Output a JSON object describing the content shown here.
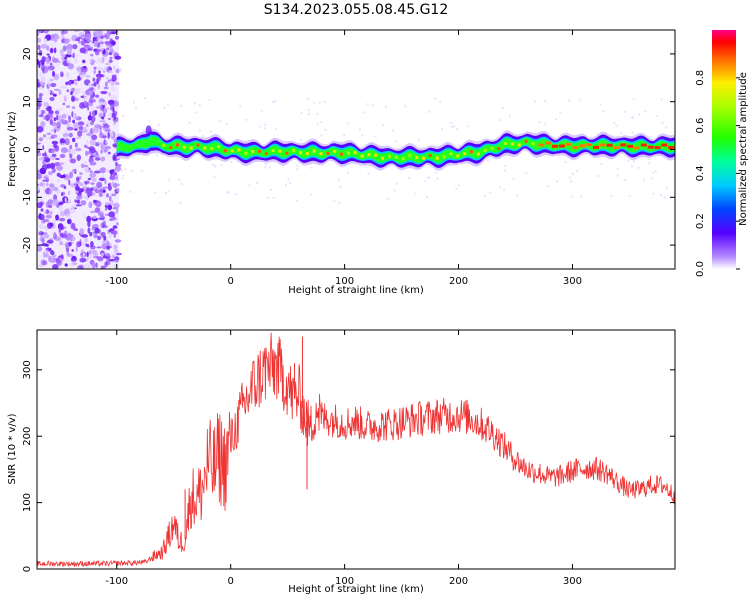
{
  "title": "S134.2023.055.08.45.G12",
  "chart_data": [
    {
      "type": "heatmap",
      "xlabel": "Height of straight line (km)",
      "ylabel": "Frequency (Hz)",
      "xlim": [
        -170,
        390
      ],
      "ylim": [
        -25,
        25
      ],
      "xticks": [
        -100,
        0,
        100,
        200,
        300
      ],
      "yticks": [
        -20,
        -10,
        0,
        10,
        20
      ],
      "grid": false,
      "colorbar": {
        "label": "Normalized spectral amplitude",
        "range": [
          0.0,
          1.0
        ],
        "ticks": [
          0.0,
          0.2,
          0.4,
          0.6,
          0.8
        ]
      },
      "noise_region_x": [
        -170,
        -98
      ],
      "ridge": {
        "x": [
          -100,
          -90,
          -80,
          -70,
          -60,
          -50,
          -40,
          -30,
          -20,
          -10,
          0,
          20,
          40,
          60,
          80,
          100,
          120,
          140,
          160,
          180,
          200,
          220,
          240,
          260,
          280,
          300,
          320,
          340,
          360,
          380,
          390
        ],
        "frequency_hz": [
          0.3,
          0.6,
          0.8,
          2.0,
          0.8,
          0.7,
          0.5,
          0.6,
          0.4,
          0.2,
          -0.3,
          -0.6,
          -0.4,
          -0.6,
          -0.7,
          -0.7,
          -1.2,
          -1.7,
          -1.6,
          -1.6,
          -1.0,
          -0.5,
          1.0,
          1.4,
          0.9,
          0.7,
          0.8,
          0.7,
          0.6,
          0.6,
          0.7
        ]
      }
    },
    {
      "type": "line",
      "xlabel": "Height of straight line (km)",
      "ylabel": "SNR (10 * v/v)",
      "xlim": [
        -170,
        390
      ],
      "ylim": [
        0,
        360
      ],
      "xticks": [
        -100,
        0,
        100,
        200,
        300
      ],
      "yticks": [
        0,
        100,
        200,
        300
      ],
      "grid": false,
      "series": [
        {
          "color": "#ee3333",
          "x": [
            -170,
            -150,
            -130,
            -110,
            -90,
            -75,
            -65,
            -60,
            -55,
            -50,
            -45,
            -40,
            -35,
            -30,
            -25,
            -20,
            -15,
            -10,
            -5,
            0,
            10,
            20,
            30,
            40,
            50,
            55,
            60,
            65,
            70,
            75,
            80,
            90,
            100,
            110,
            120,
            140,
            160,
            180,
            200,
            210,
            220,
            230,
            240,
            250,
            260,
            270,
            280,
            290,
            300,
            310,
            320,
            330,
            340,
            350,
            360,
            370,
            380,
            390
          ],
          "values": [
            8,
            8,
            8,
            8,
            9,
            10,
            22,
            25,
            45,
            70,
            40,
            45,
            110,
            105,
            120,
            160,
            150,
            170,
            155,
            190,
            240,
            275,
            300,
            305,
            278,
            255,
            262,
            230,
            210,
            245,
            228,
            225,
            220,
            222,
            215,
            218,
            225,
            230,
            232,
            228,
            218,
            205,
            185,
            165,
            150,
            145,
            138,
            140,
            148,
            152,
            152,
            145,
            130,
            118,
            120,
            127,
            126,
            110
          ]
        }
      ],
      "peak_labels": []
    }
  ]
}
